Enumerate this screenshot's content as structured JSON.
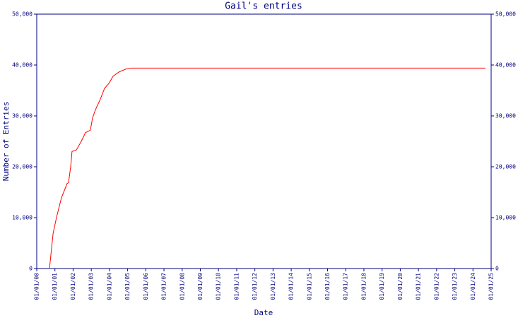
{
  "chart_data": {
    "type": "line",
    "title": "Gail's entries",
    "xlabel": "Date",
    "ylabel": "Number of Entries",
    "xlim": [
      2000,
      2025
    ],
    "xticks": [
      {
        "value": 2000,
        "label": "01/01/00"
      },
      {
        "value": 2001,
        "label": "01/01/01"
      },
      {
        "value": 2002,
        "label": "01/01/02"
      },
      {
        "value": 2003,
        "label": "01/01/03"
      },
      {
        "value": 2004,
        "label": "01/01/04"
      },
      {
        "value": 2005,
        "label": "01/01/05"
      },
      {
        "value": 2006,
        "label": "01/01/06"
      },
      {
        "value": 2007,
        "label": "01/01/07"
      },
      {
        "value": 2008,
        "label": "01/01/08"
      },
      {
        "value": 2009,
        "label": "01/01/09"
      },
      {
        "value": 2010,
        "label": "01/01/10"
      },
      {
        "value": 2011,
        "label": "01/01/11"
      },
      {
        "value": 2012,
        "label": "01/01/12"
      },
      {
        "value": 2013,
        "label": "01/01/13"
      },
      {
        "value": 2014,
        "label": "01/01/14"
      },
      {
        "value": 2015,
        "label": "01/01/15"
      },
      {
        "value": 2016,
        "label": "01/01/16"
      },
      {
        "value": 2017,
        "label": "01/01/17"
      },
      {
        "value": 2018,
        "label": "01/01/18"
      },
      {
        "value": 2019,
        "label": "01/01/19"
      },
      {
        "value": 2020,
        "label": "01/01/20"
      },
      {
        "value": 2021,
        "label": "01/01/21"
      },
      {
        "value": 2022,
        "label": "01/01/22"
      },
      {
        "value": 2023,
        "label": "01/01/23"
      },
      {
        "value": 2024,
        "label": "01/01/24"
      },
      {
        "value": 2025,
        "label": "01/01/25"
      }
    ],
    "ylim": [
      0,
      50000
    ],
    "yticks": [
      0,
      {
        "value": 10000,
        "label": "10,000"
      },
      {
        "value": 20000,
        "label": "20,000"
      },
      {
        "value": 30000,
        "label": "30,000"
      },
      {
        "value": 40000,
        "label": "40,000"
      },
      {
        "value": 50000,
        "label": "50,000"
      }
    ],
    "y2lim": [
      0,
      50000
    ],
    "y2ticks": [
      0,
      {
        "value": 10000,
        "label": "10,000"
      },
      {
        "value": 20000,
        "label": "20,000"
      },
      {
        "value": 30000,
        "label": "30,000"
      },
      {
        "value": 40000,
        "label": "40,000"
      },
      {
        "value": 50000,
        "label": "50,000"
      }
    ],
    "series": [
      {
        "name": "Entries",
        "color": "#ff0000",
        "x": [
          2000.7,
          2000.9,
          2001.09,
          2001.36,
          2001.67,
          2001.75,
          2001.87,
          2001.94,
          2002.18,
          2002.45,
          2002.68,
          2002.95,
          2003.07,
          2003.23,
          2003.5,
          2003.73,
          2003.97,
          2004.2,
          2004.51,
          2004.9,
          2005.17,
          2024.69
        ],
        "values": [
          0,
          6900,
          10100,
          13900,
          16700,
          16900,
          20100,
          23000,
          23300,
          25000,
          26700,
          27200,
          29600,
          31200,
          33300,
          35400,
          36400,
          37800,
          38600,
          39200,
          39400,
          39400
        ]
      }
    ]
  }
}
